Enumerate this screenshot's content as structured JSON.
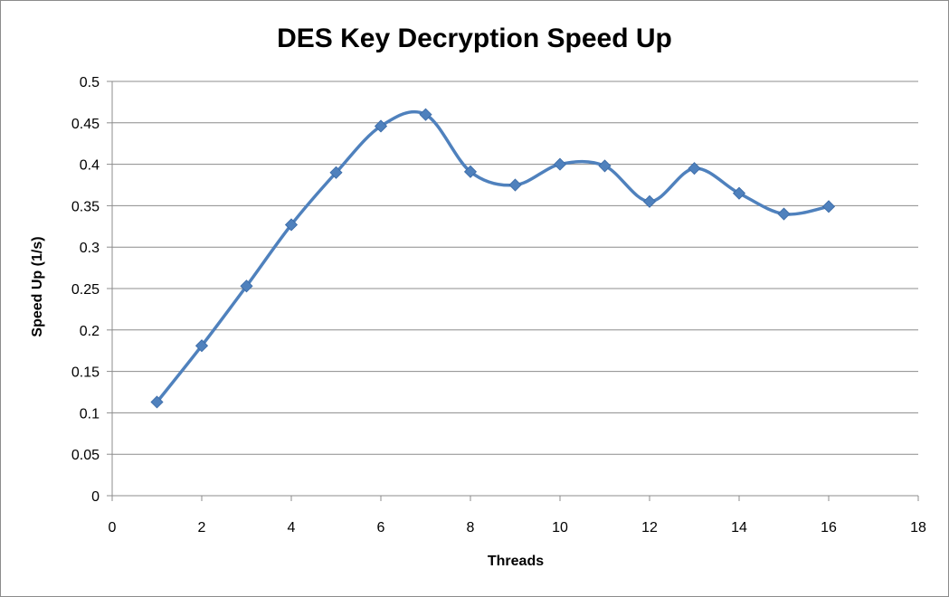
{
  "chart_data": {
    "type": "line",
    "title": "DES Key Decryption Speed Up",
    "xlabel": "Threads",
    "ylabel": "Speed Up (1/s)",
    "xlim": [
      0,
      18
    ],
    "ylim": [
      0,
      0.5
    ],
    "x_ticks": [
      0,
      2,
      4,
      6,
      8,
      10,
      12,
      14,
      16,
      18
    ],
    "y_ticks": [
      0,
      0.05,
      0.1,
      0.15,
      0.2,
      0.25,
      0.3,
      0.35,
      0.4,
      0.45,
      0.5
    ],
    "grid": "horizontal",
    "legend": "none",
    "smooth": true,
    "series": [
      {
        "color": "#4f81bd",
        "marker": "diamond",
        "x": [
          1,
          2,
          3,
          4,
          5,
          6,
          7,
          8,
          9,
          10,
          11,
          12,
          13,
          14,
          15,
          16
        ],
        "y": [
          0.113,
          0.181,
          0.253,
          0.327,
          0.39,
          0.446,
          0.46,
          0.391,
          0.375,
          0.4,
          0.398,
          0.355,
          0.395,
          0.365,
          0.34,
          0.349
        ]
      }
    ]
  }
}
